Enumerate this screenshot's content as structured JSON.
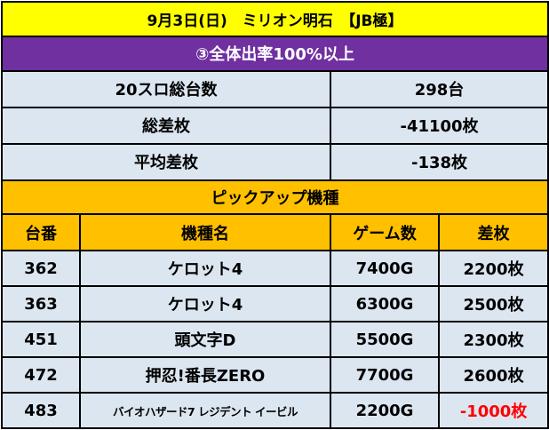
{
  "title": "9月3日(日)　ミリオン明石　【JB極】",
  "event": "③全体出率100%以上",
  "stats": [
    {
      "label": "20スロ総台数",
      "value": "298台"
    },
    {
      "label": "総差枚",
      "value": "-41100枚"
    },
    {
      "label": "平均差枚",
      "value": "-138枚"
    }
  ],
  "pickup_title": "ピックアップ機種",
  "columns": [
    "台番",
    "機種名",
    "ゲーム数",
    "差枚"
  ],
  "rows": [
    {
      "number": "362",
      "machine": "ケロット4",
      "games": "7400G",
      "diff": "2200枚"
    },
    {
      "number": "363",
      "machine": "ケロット4",
      "games": "6300G",
      "diff": "2500枚"
    },
    {
      "number": "451",
      "machine": "頭文字D",
      "games": "5500G",
      "diff": "2300枚"
    },
    {
      "number": "472",
      "machine": "押忍!番長ZERO",
      "games": "7700G",
      "diff": "2600枚"
    },
    {
      "number": "483",
      "machine": "バイオハザード7 レジデント イービル",
      "games": "2200G",
      "diff": "-1000枚"
    }
  ],
  "colors": {
    "title_bg": "#ffff00",
    "event_bg": "#7030a0",
    "stat_bg": "#dce6f1",
    "header_bg": "#ffc000",
    "negative": "#ff0000"
  }
}
